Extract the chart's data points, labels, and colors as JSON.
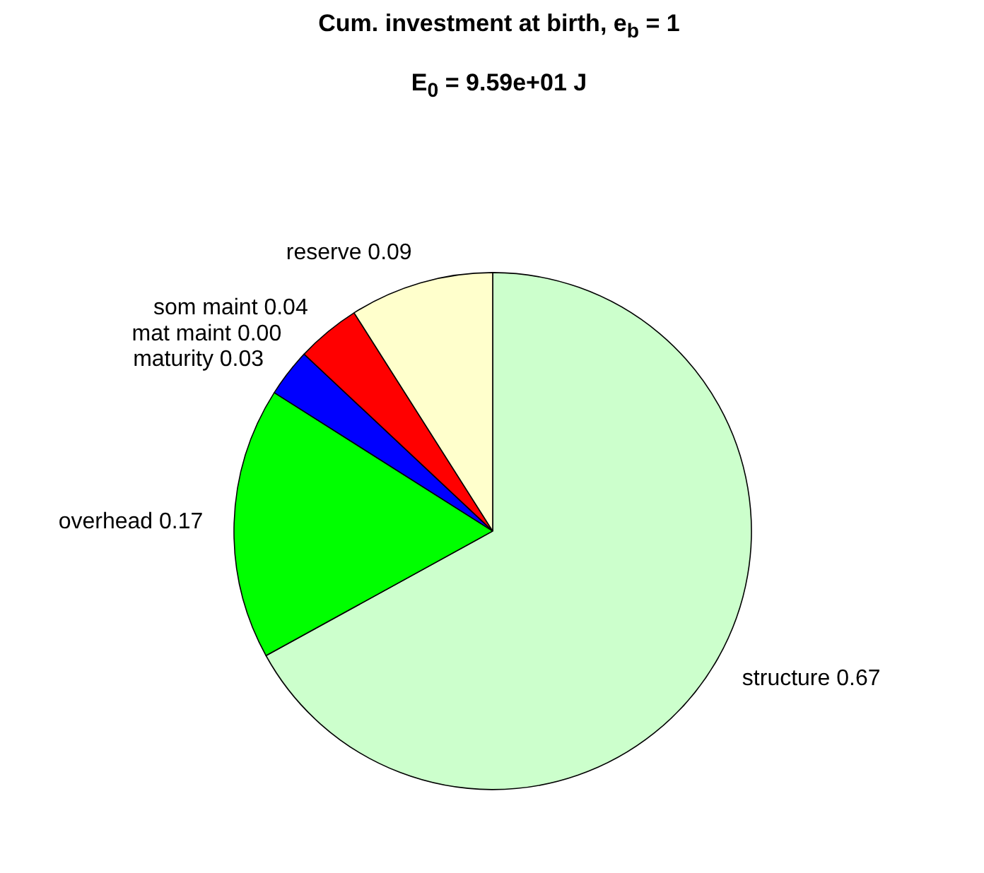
{
  "chart_data": {
    "type": "pie",
    "title": "Cum. investment at birth, e$_{b}$ = 1",
    "subtitle": "E$_{0}$ = 9.59e+01 J",
    "categories": [
      "structure",
      "overhead",
      "maturity",
      "mat maint",
      "som maint",
      "reserve"
    ],
    "values": [
      0.67,
      0.17,
      0.03,
      0.0,
      0.04,
      0.09
    ],
    "value_labels": [
      "0.67",
      "0.17",
      "0.03",
      "0.00",
      "0.04",
      "0.09"
    ],
    "colors": [
      "#ccffcc",
      "#00ff00",
      "#0000ff",
      "#000080",
      "#ff0000",
      "#ffffcc"
    ]
  }
}
